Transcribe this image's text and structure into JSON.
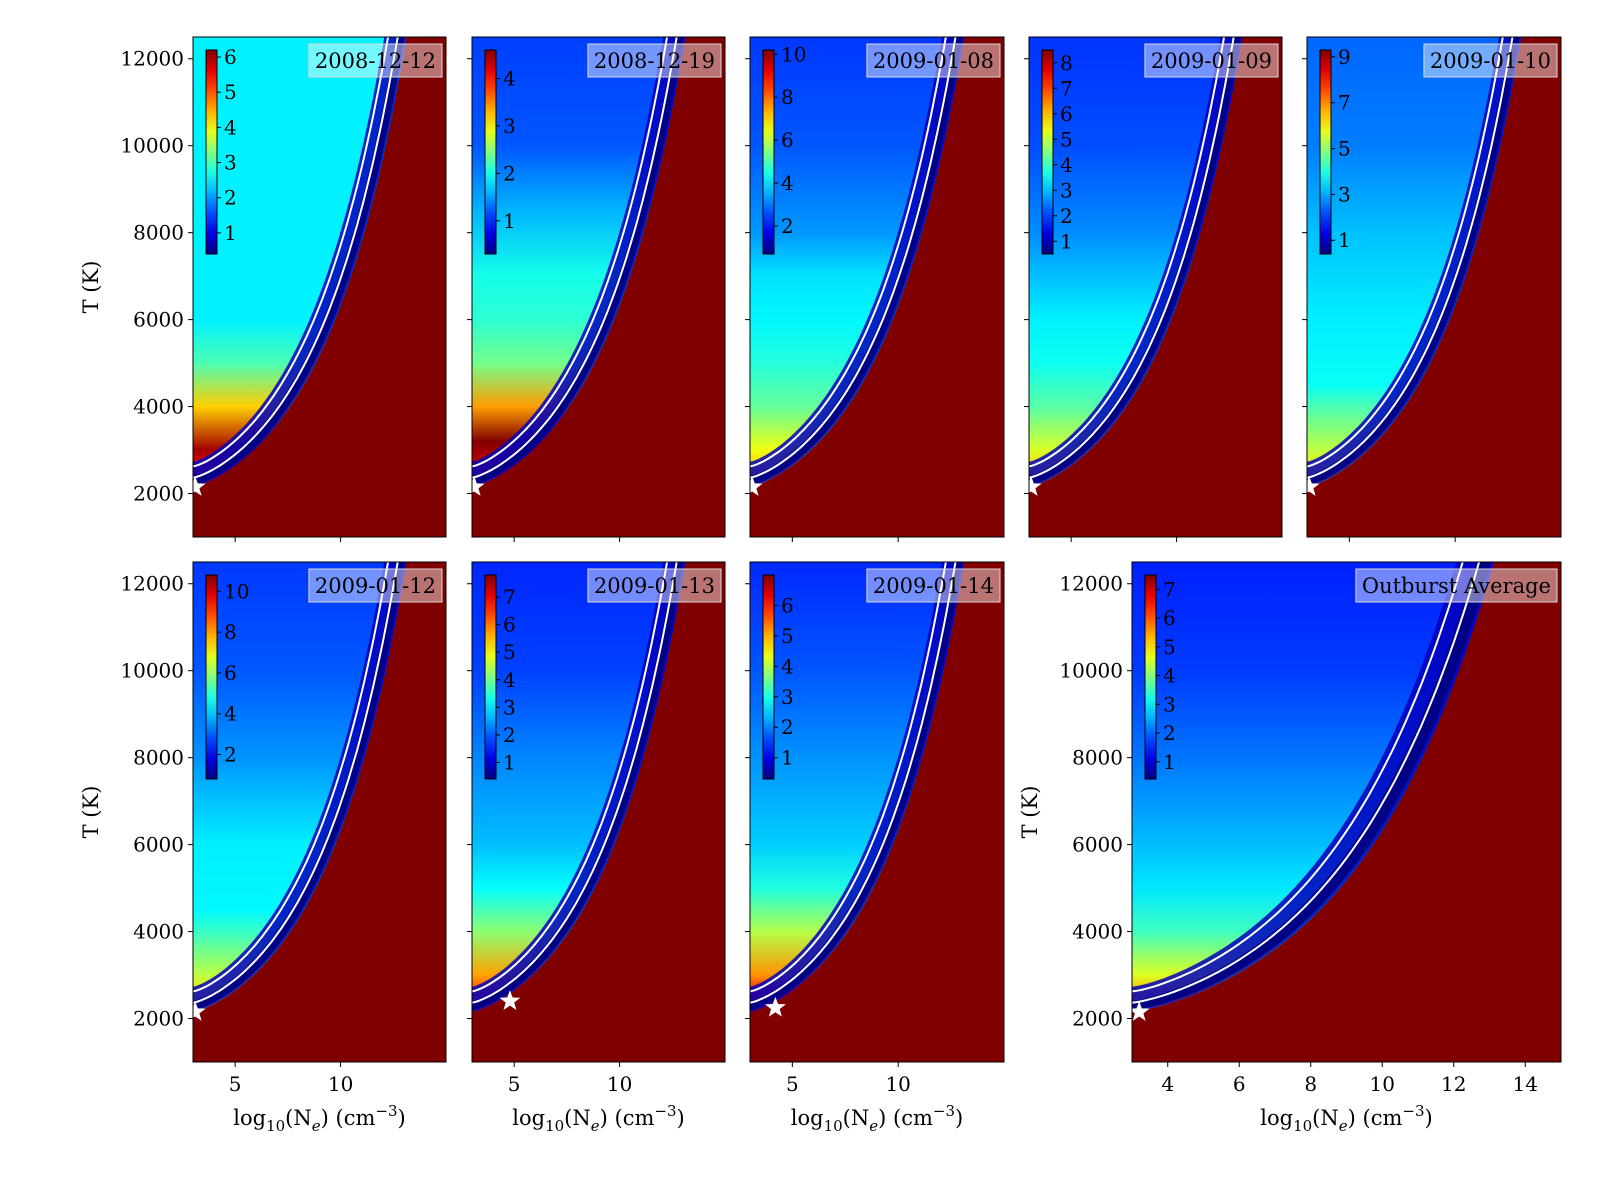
{
  "figure": {
    "y_axis_label": "T (K)"
  },
  "chart_data": [
    {
      "type": "heatmap",
      "title": "2008-12-12",
      "xlabel_parts": [
        "log",
        "10",
        "(N",
        "e",
        ") (cm",
        "−3",
        ")"
      ],
      "ylabel": "T (K)",
      "xlim": [
        3,
        15
      ],
      "ylim": [
        1000,
        12500
      ],
      "xticks": [
        5,
        10
      ],
      "yticks": [
        2000,
        4000,
        6000,
        8000,
        10000,
        12000
      ],
      "colorbar": {
        "range": [
          0.4,
          6.2
        ],
        "ticks": [
          1,
          2,
          3,
          4,
          5,
          6
        ]
      },
      "background_profile": [
        [
          12500,
          2.5
        ],
        [
          6000,
          2.5
        ],
        [
          5000,
          3.0
        ],
        [
          4000,
          4.3
        ],
        [
          3000,
          6.0
        ],
        [
          2500,
          5.5
        ],
        [
          2000,
          5.0
        ]
      ],
      "marker": {
        "x": 3.1,
        "y": 2150
      }
    },
    {
      "type": "heatmap",
      "title": "2008-12-19",
      "xlabel_parts": [
        "log",
        "10",
        "(N",
        "e",
        ") (cm",
        "−3",
        ")"
      ],
      "ylabel": "T (K)",
      "xlim": [
        3,
        15
      ],
      "ylim": [
        1000,
        12500
      ],
      "xticks": [
        5,
        10
      ],
      "yticks": [
        2000,
        4000,
        6000,
        8000,
        10000,
        12000
      ],
      "colorbar": {
        "range": [
          0.3,
          4.6
        ],
        "ticks": [
          1,
          2,
          3,
          4
        ]
      },
      "background_profile": [
        [
          12500,
          1.1
        ],
        [
          10000,
          1.2
        ],
        [
          8500,
          1.6
        ],
        [
          7000,
          2.0
        ],
        [
          6000,
          2.1
        ],
        [
          5000,
          2.4
        ],
        [
          4000,
          3.4
        ],
        [
          3200,
          4.6
        ],
        [
          2500,
          4.2
        ],
        [
          2000,
          3.8
        ]
      ],
      "marker": {
        "x": 3.1,
        "y": 2150
      }
    },
    {
      "type": "heatmap",
      "title": "2009-01-08",
      "xlabel_parts": [
        "log",
        "10",
        "(N",
        "e",
        ") (cm",
        "−3",
        ")"
      ],
      "ylabel": "T (K)",
      "xlim": [
        3,
        15
      ],
      "ylim": [
        1000,
        12500
      ],
      "xticks": [
        5,
        10
      ],
      "yticks": [
        2000,
        4000,
        6000,
        8000,
        10000,
        12000
      ],
      "colorbar": {
        "range": [
          0.7,
          10.2
        ],
        "ticks": [
          2,
          4,
          6,
          8,
          10
        ]
      },
      "background_profile": [
        [
          12500,
          2.4
        ],
        [
          10000,
          2.7
        ],
        [
          8000,
          3.3
        ],
        [
          7000,
          4.0
        ],
        [
          6000,
          4.2
        ],
        [
          5000,
          4.6
        ],
        [
          4000,
          5.2
        ],
        [
          3000,
          6.5
        ],
        [
          2500,
          7.2
        ],
        [
          2000,
          6.8
        ]
      ],
      "marker": {
        "x": 3.1,
        "y": 2150
      }
    },
    {
      "type": "heatmap",
      "title": "2009-01-09",
      "xlabel_parts": [
        "log",
        "10",
        "(N",
        "e",
        ") (cm",
        "−3",
        ")"
      ],
      "ylabel": "T (K)",
      "xlim": [
        3,
        15
      ],
      "ylim": [
        1000,
        12500
      ],
      "xticks": [
        5,
        10
      ],
      "yticks": [
        2000,
        4000,
        6000,
        8000,
        10000,
        12000
      ],
      "colorbar": {
        "range": [
          0.5,
          8.5
        ],
        "ticks": [
          1,
          2,
          3,
          4,
          5,
          6,
          7,
          8
        ]
      },
      "background_profile": [
        [
          12500,
          1.9
        ],
        [
          10000,
          2.1
        ],
        [
          8000,
          2.6
        ],
        [
          6000,
          3.4
        ],
        [
          5000,
          3.6
        ],
        [
          4000,
          4.2
        ],
        [
          3000,
          5.2
        ],
        [
          2500,
          5.9
        ],
        [
          2000,
          5.7
        ]
      ],
      "marker": {
        "x": 3.1,
        "y": 2150
      }
    },
    {
      "type": "heatmap",
      "title": "2009-01-10",
      "xlabel_parts": [
        "log",
        "10",
        "(N",
        "e",
        ") (cm",
        "−3",
        ")"
      ],
      "ylabel": "T (K)",
      "xlim": [
        3,
        15
      ],
      "ylim": [
        1000,
        12500
      ],
      "xticks": [
        5,
        10
      ],
      "yticks": [
        2000,
        4000,
        6000,
        8000,
        10000,
        12000
      ],
      "colorbar": {
        "range": [
          0.4,
          9.3
        ],
        "ticks": [
          1,
          3,
          5,
          7,
          9
        ]
      },
      "background_profile": [
        [
          12500,
          2.4
        ],
        [
          10000,
          2.6
        ],
        [
          8000,
          3.2
        ],
        [
          6000,
          3.6
        ],
        [
          4500,
          3.8
        ],
        [
          4000,
          4.4
        ],
        [
          3000,
          5.4
        ],
        [
          2500,
          6.2
        ],
        [
          2000,
          6.0
        ]
      ],
      "marker": {
        "x": 3.1,
        "y": 2150
      }
    },
    {
      "type": "heatmap",
      "title": "2009-01-12",
      "xlabel_parts": [
        "log",
        "10",
        "(N",
        "e",
        ") (cm",
        "−3",
        ")"
      ],
      "ylabel": "T (K)",
      "xlim": [
        3,
        15
      ],
      "ylim": [
        1000,
        12500
      ],
      "xticks": [
        5,
        10
      ],
      "yticks": [
        2000,
        4000,
        6000,
        8000,
        10000,
        12000
      ],
      "colorbar": {
        "range": [
          0.8,
          10.8
        ],
        "ticks": [
          2,
          4,
          6,
          8,
          10
        ]
      },
      "background_profile": [
        [
          12500,
          2.6
        ],
        [
          10000,
          2.9
        ],
        [
          8000,
          3.5
        ],
        [
          6000,
          4.4
        ],
        [
          4500,
          4.5
        ],
        [
          4000,
          5.1
        ],
        [
          3000,
          6.4
        ],
        [
          2500,
          7.4
        ],
        [
          2000,
          7.0
        ]
      ],
      "marker": {
        "x": 3.1,
        "y": 2150
      }
    },
    {
      "type": "heatmap",
      "title": "2009-01-13",
      "xlabel_parts": [
        "log",
        "10",
        "(N",
        "e",
        ") (cm",
        "−3",
        ")"
      ],
      "ylabel": "T (K)",
      "xlim": [
        3,
        15
      ],
      "ylim": [
        1000,
        12500
      ],
      "xticks": [
        5,
        10
      ],
      "yticks": [
        2000,
        4000,
        6000,
        8000,
        10000,
        12000
      ],
      "colorbar": {
        "range": [
          0.4,
          7.8
        ],
        "ticks": [
          1,
          2,
          3,
          4,
          5,
          6,
          7
        ]
      },
      "background_profile": [
        [
          12500,
          1.6
        ],
        [
          10000,
          1.8
        ],
        [
          8000,
          2.3
        ],
        [
          6000,
          2.7
        ],
        [
          5000,
          3.2
        ],
        [
          4000,
          4.2
        ],
        [
          3000,
          5.7
        ],
        [
          2500,
          6.5
        ],
        [
          2000,
          6.2
        ]
      ],
      "marker": {
        "x": 4.8,
        "y": 2400
      }
    },
    {
      "type": "heatmap",
      "title": "2009-01-14",
      "xlabel_parts": [
        "log",
        "10",
        "(N",
        "e",
        ") (cm",
        "−3",
        ")"
      ],
      "ylabel": "T (K)",
      "xlim": [
        3,
        15
      ],
      "ylim": [
        1000,
        12500
      ],
      "xticks": [
        5,
        10
      ],
      "yticks": [
        2000,
        4000,
        6000,
        8000,
        10000,
        12000
      ],
      "colorbar": {
        "range": [
          0.3,
          7.0
        ],
        "ticks": [
          1,
          2,
          3,
          4,
          5,
          6
        ]
      },
      "background_profile": [
        [
          12500,
          1.4
        ],
        [
          10000,
          1.7
        ],
        [
          8000,
          2.1
        ],
        [
          6000,
          2.5
        ],
        [
          5000,
          3.0
        ],
        [
          4000,
          4.0
        ],
        [
          3000,
          5.2
        ],
        [
          2500,
          6.2
        ],
        [
          2000,
          6.0
        ]
      ],
      "marker": {
        "x": 4.2,
        "y": 2250
      }
    },
    {
      "type": "heatmap",
      "title": "Outburst Average",
      "xlabel_parts": [
        "log",
        "10",
        "(N",
        "e",
        ") (cm",
        "−3",
        ")"
      ],
      "ylabel": "T (K)",
      "xlim": [
        3,
        15
      ],
      "ylim": [
        1000,
        12500
      ],
      "xticks": [
        4,
        6,
        8,
        10,
        12,
        14
      ],
      "yticks": [
        2000,
        4000,
        6000,
        8000,
        10000,
        12000
      ],
      "colorbar": {
        "range": [
          0.4,
          7.5
        ],
        "ticks": [
          1,
          2,
          3,
          4,
          5,
          6,
          7
        ]
      },
      "background_profile": [
        [
          12500,
          1.5
        ],
        [
          10000,
          1.7
        ],
        [
          8000,
          2.1
        ],
        [
          6000,
          2.6
        ],
        [
          5000,
          2.9
        ],
        [
          4000,
          3.5
        ],
        [
          3000,
          4.6
        ],
        [
          2500,
          5.5
        ],
        [
          2000,
          5.2
        ]
      ],
      "marker": {
        "x": 3.2,
        "y": 2150
      }
    }
  ]
}
